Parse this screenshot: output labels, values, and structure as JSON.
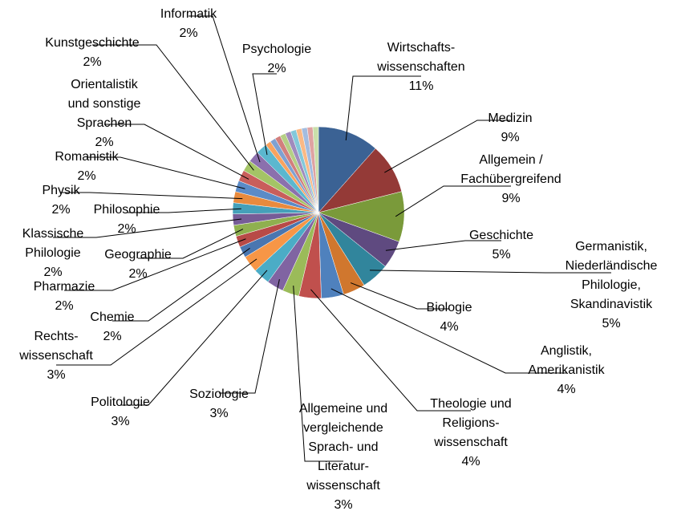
{
  "chart_data": {
    "type": "pie",
    "categories": [
      "Wirtschafts-\nwissenschaften",
      "Medizin",
      "Allgemein /\nFachübergreifend",
      "Geschichte",
      "Germanistik,\nNiederländische\nPhilologie,\nSkandinavistik",
      "Biologie",
      "Anglistik,\nAmerikanistik",
      "Theologie und\nReligions-\nwissenschaft",
      "Allgemeine und\nvergleichende\nSprach- und\nLiteratur-\nwissenschaft",
      "Soziologie",
      "Politologie",
      "Rechts-\nwissenschaft",
      "Chemie",
      "Pharmazie",
      "Geographie",
      "Klassische\nPhilologie",
      "Philosophie",
      "Physik",
      "Romanistik",
      "Orientalistik\nund sonstige\nSprachen",
      "Kunstgeschichte",
      "Informatik",
      "Psychologie",
      null,
      null,
      null,
      null,
      null,
      null,
      null,
      null,
      null,
      null
    ],
    "values": [
      11,
      9,
      9,
      5,
      5,
      4,
      4,
      4,
      3,
      3,
      3,
      3,
      2,
      2,
      2,
      2,
      2,
      2,
      2,
      2,
      2,
      2,
      2,
      1,
      1,
      1,
      1,
      1,
      1,
      1,
      1,
      1,
      1
    ],
    "value_labels": [
      "11%",
      "9%",
      "9%",
      "5%",
      "5%",
      "4%",
      "4%",
      "4%",
      "3%",
      "3%",
      "3%",
      "3%",
      "2%",
      "2%",
      "2%",
      "2%",
      "2%",
      "2%",
      "2%",
      "2%",
      "2%",
      "2%",
      "2%",
      null,
      null,
      null,
      null,
      null,
      null,
      null,
      null,
      null,
      null
    ],
    "colors": [
      "#3b6294",
      "#943a37",
      "#7a9a3a",
      "#5f4a80",
      "#31859c",
      "#d0772e",
      "#4f81bd",
      "#c0504d",
      "#9bbb59",
      "#8064a2",
      "#4bacc6",
      "#f79646",
      "#4a76b0",
      "#b84a47",
      "#8fb04f",
      "#765c97",
      "#45a0b9",
      "#e88a3d",
      "#5b8bc7",
      "#c95e5b",
      "#a4c466",
      "#8b70ad",
      "#5bb7cf",
      "#f9a35f",
      "#7fa1d1",
      "#d27f7d",
      "#b5cf85",
      "#a08bbd",
      "#83c8da",
      "#fab985",
      "#a3bcdf",
      "#dfa3a2",
      "#cadfaa"
    ]
  }
}
